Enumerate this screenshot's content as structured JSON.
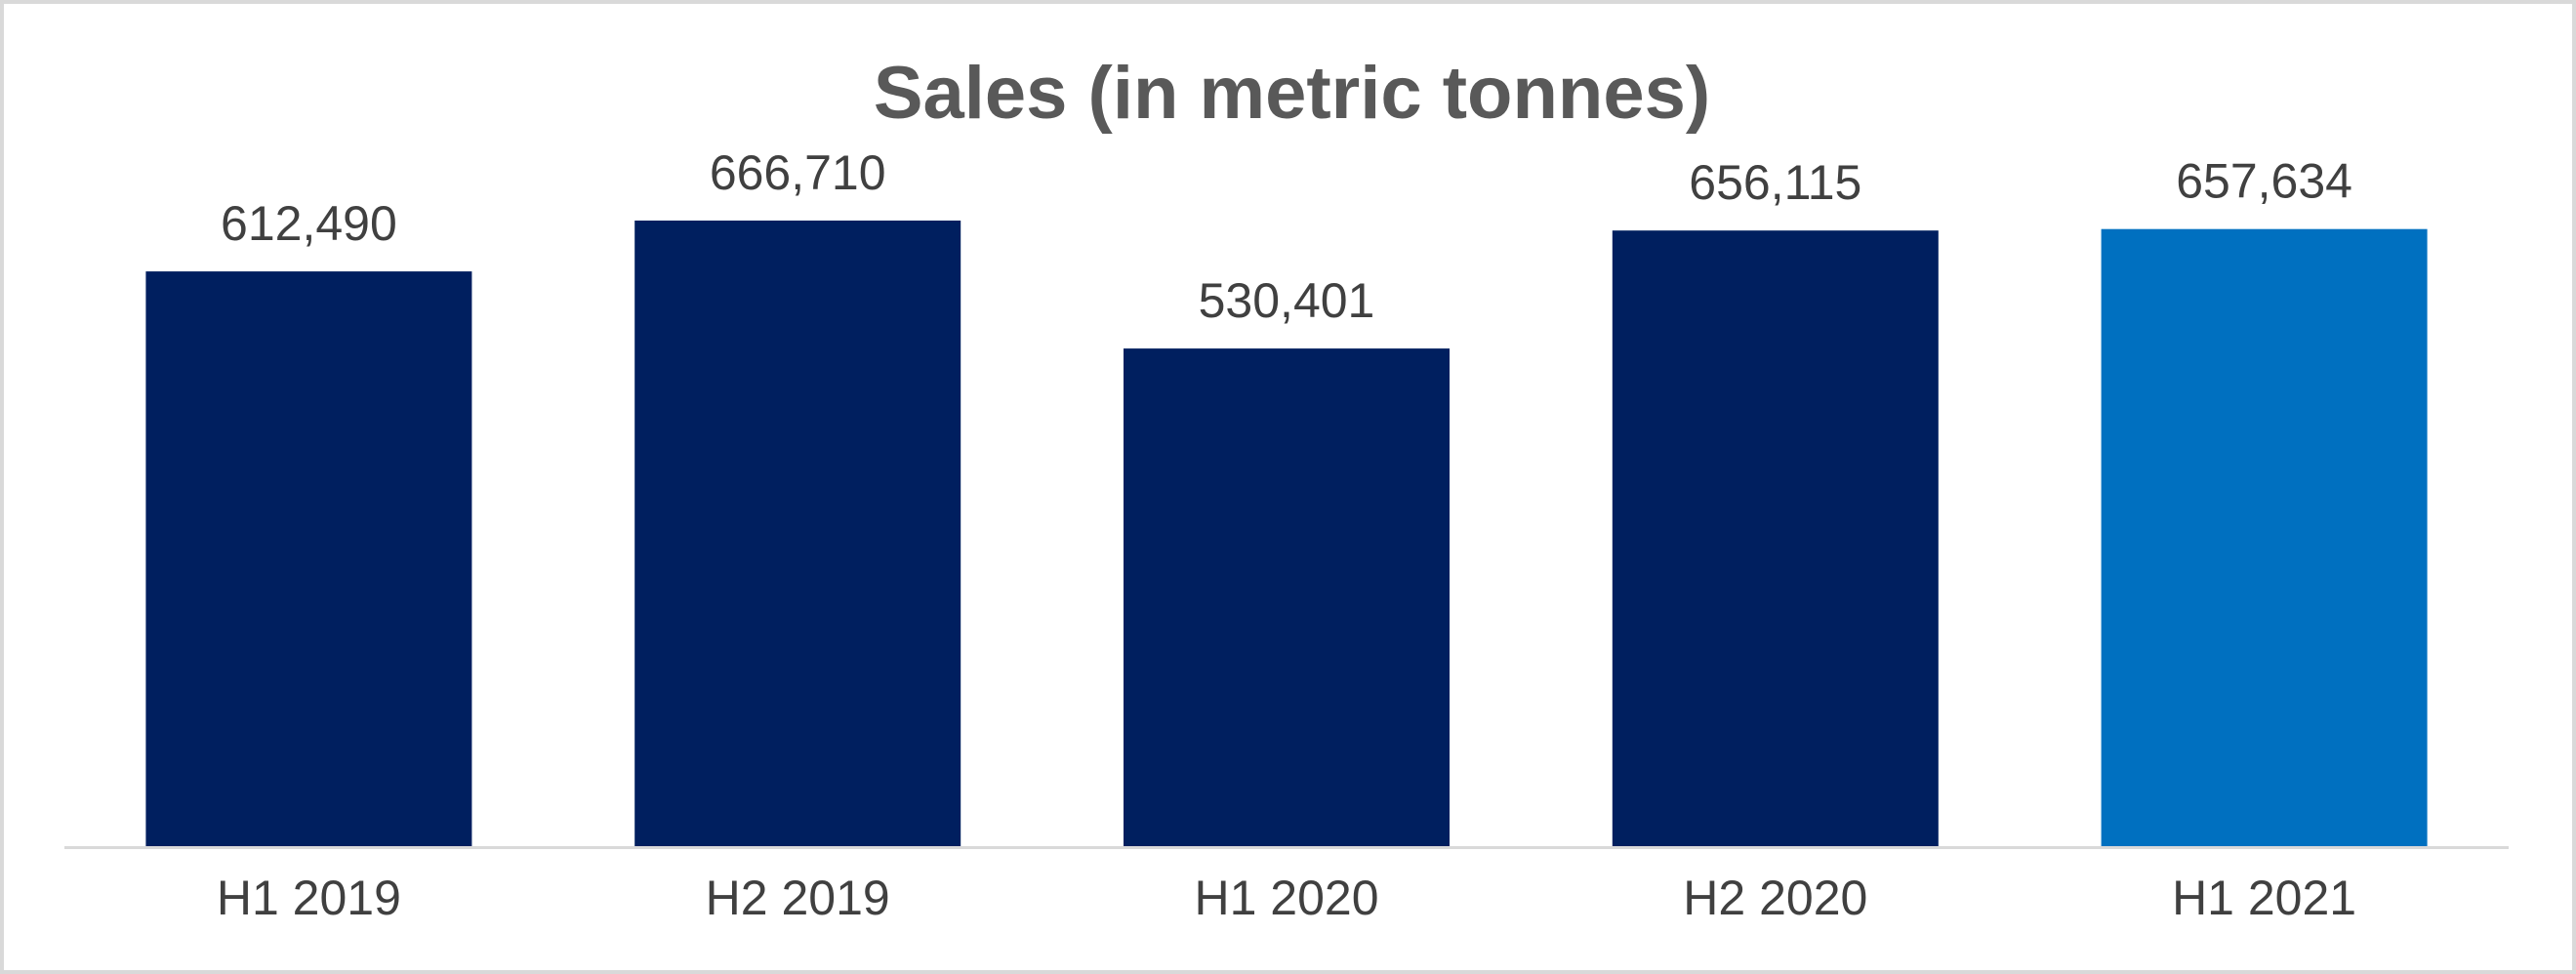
{
  "chart_data": {
    "type": "bar",
    "title": "Sales (in metric tonnes)",
    "categories": [
      "H1 2019",
      "H2 2019",
      "H1 2020",
      "H2 2020",
      "H1 2021"
    ],
    "values": [
      612490,
      666710,
      530401,
      656115,
      657634
    ],
    "value_labels": [
      "612,490",
      "666,710",
      "530,401",
      "656,115",
      "657,634"
    ],
    "xlabel": "",
    "ylabel": "",
    "ylim": [
      0,
      700000
    ],
    "grid": false,
    "legend": "none",
    "colors": {
      "bar": "#001f5f",
      "highlight_bar": "#0070c0",
      "axis": "#d9d9d9",
      "title": "#595959",
      "labels": "#404040"
    },
    "highlight_index": 4
  }
}
